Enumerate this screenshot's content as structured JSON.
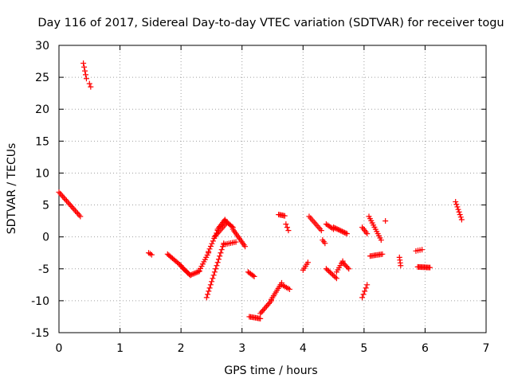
{
  "chart_data": {
    "type": "scatter",
    "title": "Day 116 of 2017, Sidereal Day-to-day VTEC variation (SDTVAR) for receiver togu",
    "xlabel": "GPS time / hours",
    "ylabel": "SDTVAR / TECUs",
    "xlim": [
      0,
      7
    ],
    "ylim": [
      -15,
      30
    ],
    "xticks": [
      "0",
      "1",
      "2",
      "3",
      "4",
      "5",
      "6",
      "7"
    ],
    "yticks": [
      "-15",
      "-10",
      "-5",
      "0",
      "5",
      "10",
      "15",
      "20",
      "25",
      "30"
    ],
    "grid": true,
    "marker": "plus",
    "color": "#ff0000",
    "segments": [
      {
        "x": [
          0.0,
          0.35
        ],
        "y": [
          7.0,
          3.2
        ],
        "n": 18
      },
      {
        "x": [
          0.4,
          0.45
        ],
        "y": [
          27.2,
          24.8
        ],
        "n": 5
      },
      {
        "x": [
          0.5,
          0.52
        ],
        "y": [
          24.0,
          23.5
        ],
        "n": 2
      },
      {
        "x": [
          1.47,
          1.52
        ],
        "y": [
          -2.5,
          -2.8
        ],
        "n": 3
      },
      {
        "x": [
          1.78,
          2.0
        ],
        "y": [
          -2.7,
          -4.5
        ],
        "n": 12
      },
      {
        "x": [
          2.0,
          2.15
        ],
        "y": [
          -4.6,
          -6.0
        ],
        "n": 10
      },
      {
        "x": [
          2.15,
          2.3
        ],
        "y": [
          -6.0,
          -5.4
        ],
        "n": 8
      },
      {
        "x": [
          2.3,
          2.45
        ],
        "y": [
          -5.3,
          -2.5
        ],
        "n": 9
      },
      {
        "x": [
          2.45,
          2.6
        ],
        "y": [
          -2.3,
          1.0
        ],
        "n": 9
      },
      {
        "x": [
          2.6,
          2.72
        ],
        "y": [
          1.2,
          2.7
        ],
        "n": 8
      },
      {
        "x": [
          2.72,
          2.85
        ],
        "y": [
          2.6,
          1.5
        ],
        "n": 8
      },
      {
        "x": [
          2.85,
          3.05
        ],
        "y": [
          1.2,
          -1.5
        ],
        "n": 12
      },
      {
        "x": [
          2.42,
          2.7
        ],
        "y": [
          -9.5,
          -1.0
        ],
        "n": 18
      },
      {
        "x": [
          2.55,
          2.75
        ],
        "y": [
          0.0,
          2.2
        ],
        "n": 10
      },
      {
        "x": [
          2.7,
          2.9
        ],
        "y": [
          -1.2,
          -0.8
        ],
        "n": 8
      },
      {
        "x": [
          3.1,
          3.2
        ],
        "y": [
          -5.5,
          -6.2
        ],
        "n": 6
      },
      {
        "x": [
          3.12,
          3.3
        ],
        "y": [
          -12.5,
          -12.8
        ],
        "n": 10
      },
      {
        "x": [
          3.3,
          3.48
        ],
        "y": [
          -12.0,
          -10.0
        ],
        "n": 10
      },
      {
        "x": [
          3.48,
          3.65
        ],
        "y": [
          -9.8,
          -7.2
        ],
        "n": 10
      },
      {
        "x": [
          3.65,
          3.78
        ],
        "y": [
          -7.5,
          -8.2
        ],
        "n": 6
      },
      {
        "x": [
          3.6,
          3.7
        ],
        "y": [
          3.5,
          3.3
        ],
        "n": 6
      },
      {
        "x": [
          3.72,
          3.76
        ],
        "y": [
          2.0,
          1.0
        ],
        "n": 3
      },
      {
        "x": [
          4.0,
          4.08
        ],
        "y": [
          -5.2,
          -4.0
        ],
        "n": 5
      },
      {
        "x": [
          4.1,
          4.3
        ],
        "y": [
          3.2,
          1.0
        ],
        "n": 10
      },
      {
        "x": [
          4.32,
          4.36
        ],
        "y": [
          -0.5,
          -1.0
        ],
        "n": 3
      },
      {
        "x": [
          4.38,
          4.5
        ],
        "y": [
          2.0,
          1.2
        ],
        "n": 6
      },
      {
        "x": [
          4.5,
          4.72
        ],
        "y": [
          1.5,
          0.5
        ],
        "n": 12
      },
      {
        "x": [
          4.38,
          4.55
        ],
        "y": [
          -5.0,
          -6.5
        ],
        "n": 9
      },
      {
        "x": [
          4.55,
          4.65
        ],
        "y": [
          -5.5,
          -3.8
        ],
        "n": 6
      },
      {
        "x": [
          4.65,
          4.75
        ],
        "y": [
          -4.0,
          -5.0
        ],
        "n": 6
      },
      {
        "x": [
          4.97,
          5.05
        ],
        "y": [
          1.5,
          0.5
        ],
        "n": 5
      },
      {
        "x": [
          4.97,
          5.05
        ],
        "y": [
          -9.5,
          -7.5
        ],
        "n": 5
      },
      {
        "x": [
          5.08,
          5.28
        ],
        "y": [
          3.2,
          -0.5
        ],
        "n": 12
      },
      {
        "x": [
          5.1,
          5.3
        ],
        "y": [
          -3.0,
          -2.7
        ],
        "n": 10
      },
      {
        "x": [
          5.35,
          5.35
        ],
        "y": [
          2.5,
          2.5
        ],
        "n": 1
      },
      {
        "x": [
          5.58,
          5.6
        ],
        "y": [
          -3.2,
          -4.5
        ],
        "n": 4
      },
      {
        "x": [
          5.85,
          5.95
        ],
        "y": [
          -2.2,
          -2.0
        ],
        "n": 4
      },
      {
        "x": [
          5.88,
          6.08
        ],
        "y": [
          -4.7,
          -4.8
        ],
        "n": 12
      },
      {
        "x": [
          6.5,
          6.6
        ],
        "y": [
          5.5,
          2.7
        ],
        "n": 8
      }
    ]
  }
}
